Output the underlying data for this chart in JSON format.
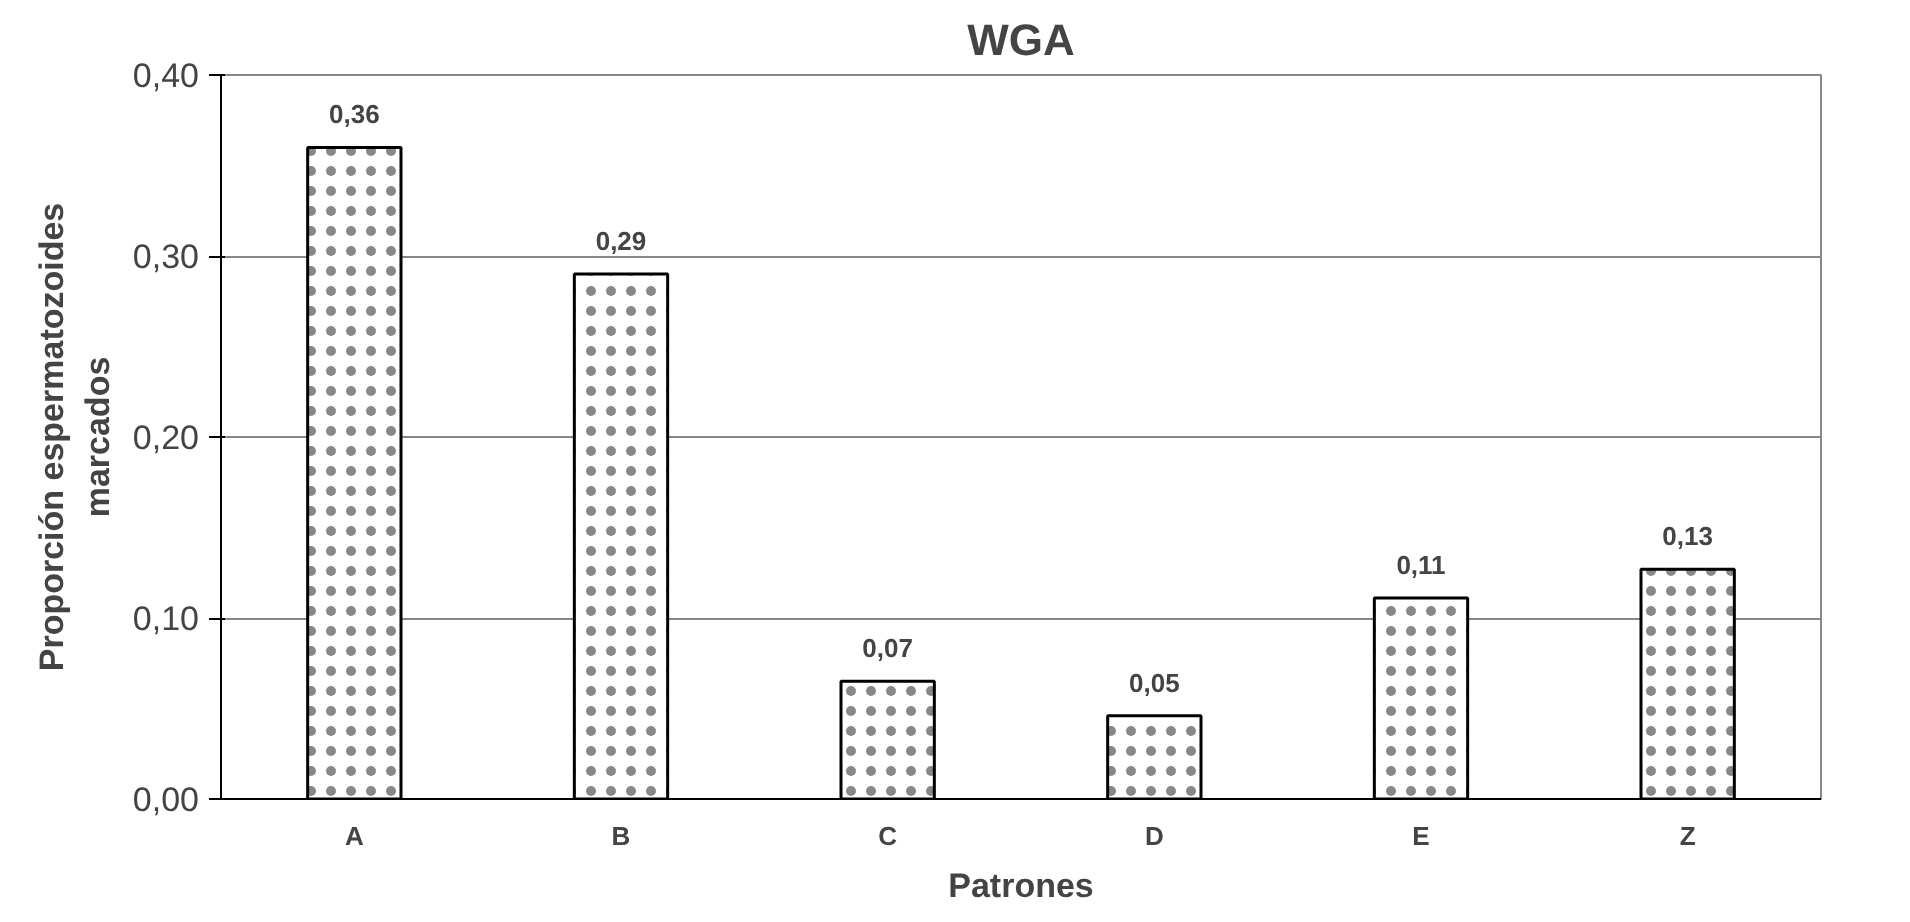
{
  "chart_data": {
    "type": "bar",
    "title": "WGA",
    "xlabel": "Patrones",
    "ylabel": "Proporción espermatozoides\nmarcados",
    "categories": [
      "A",
      "B",
      "C",
      "D",
      "E",
      "Z"
    ],
    "values": [
      0.36,
      0.29,
      0.065,
      0.046,
      0.111,
      0.127
    ],
    "value_labels": [
      "0,36",
      "0,29",
      "0,07",
      "0,05",
      "0,11",
      "0,13"
    ],
    "color": "#ffffff",
    "ylim": [
      0,
      0.4
    ],
    "yticks": [
      {
        "value": 0,
        "label": "0,00"
      },
      {
        "value": 0.1,
        "label": "0,10"
      },
      {
        "value": 0.2,
        "label": "0,20"
      },
      {
        "value": 0.3,
        "label": "0,30"
      },
      {
        "value": 0.4,
        "label": "0,40"
      }
    ],
    "grid": "y"
  }
}
